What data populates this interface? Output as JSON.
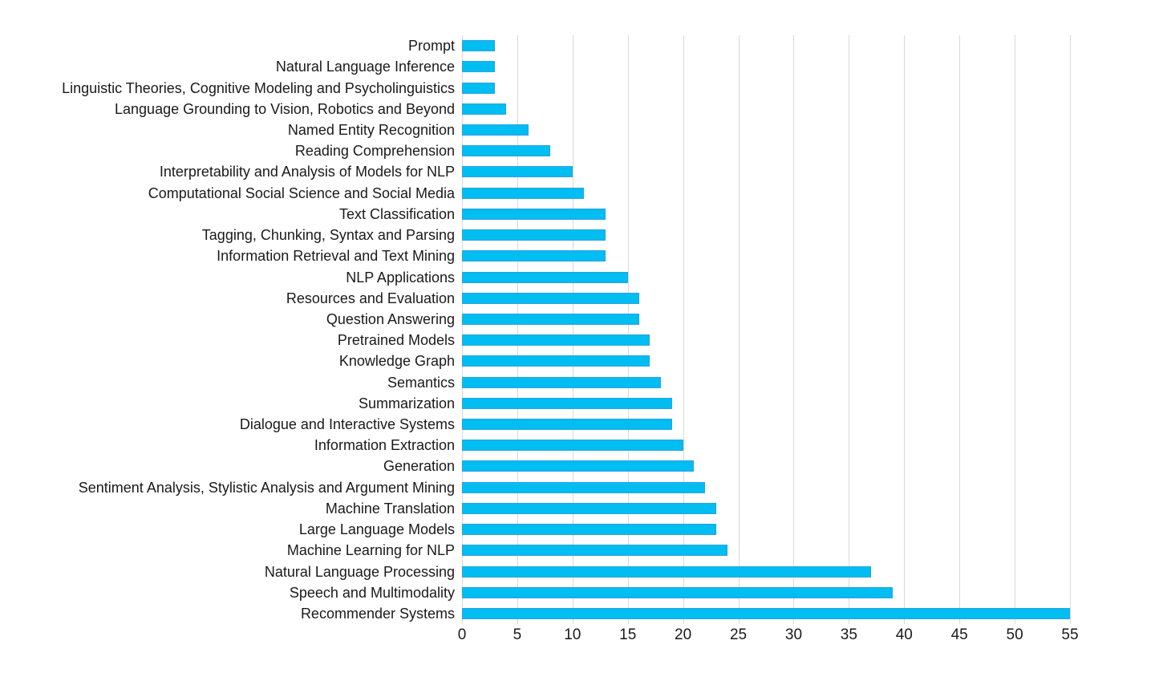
{
  "chart_data": {
    "type": "bar",
    "orientation": "horizontal",
    "title": "",
    "xlabel": "",
    "ylabel": "",
    "legend": "none",
    "grid": "vertical-only",
    "xlim": [
      0,
      55
    ],
    "xticks": [
      0,
      5,
      10,
      15,
      20,
      25,
      30,
      35,
      40,
      45,
      50,
      55
    ],
    "categories": [
      "Prompt",
      "Natural Language Inference",
      "Linguistic Theories, Cognitive Modeling and Psycholinguistics",
      "Language Grounding to Vision, Robotics and Beyond",
      "Named Entity Recognition",
      "Reading Comprehension",
      "Interpretability and Analysis of Models for NLP",
      "Computational Social Science and Social Media",
      "Text Classification",
      "Tagging, Chunking, Syntax and Parsing",
      "Information Retrieval and Text Mining",
      "NLP Applications",
      "Resources and Evaluation",
      "Question Answering",
      "Pretrained Models",
      "Knowledge Graph",
      "Semantics",
      "Summarization",
      "Dialogue and Interactive Systems",
      "Information Extraction",
      "Generation",
      "Sentiment Analysis, Stylistic Analysis and Argument Mining",
      "Machine Translation",
      "Large Language Models",
      "Machine Learning for NLP",
      "Natural Language Processing",
      "Speech and Multimodality",
      "Recommender Systems"
    ],
    "values": [
      3,
      3,
      3,
      4,
      6,
      8,
      10,
      11,
      13,
      13,
      13,
      15,
      16,
      16,
      17,
      17,
      18,
      19,
      19,
      20,
      21,
      22,
      23,
      23,
      24,
      37,
      39,
      55
    ],
    "colors": {
      "bar_fill": "#00bdf2",
      "bar_border": "#2aa3e0",
      "gridline": "#d9d9d9",
      "tick_label": "#1a1a1a",
      "category_label": "#1a1a1a",
      "background": "#ffffff"
    }
  }
}
